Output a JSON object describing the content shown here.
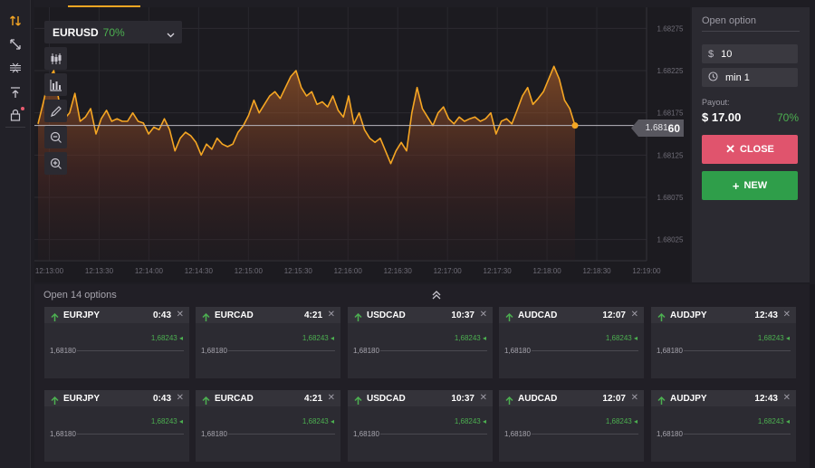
{
  "chart": {
    "pair": "EURUSD",
    "payout_pct": "70%",
    "current_price_prefix": "1.681",
    "current_price_suffix": "60",
    "y_ticks": [
      "1.68275",
      "1.68225",
      "1.68175",
      "1.68125",
      "1.68075",
      "1.68025"
    ],
    "x_ticks": [
      "12:13:00",
      "12:13:30",
      "12:14:00",
      "12:14:30",
      "12:15:00",
      "12:15:30",
      "12:16:00",
      "12:16:30",
      "12:17:00",
      "12:17:30",
      "12:18:00",
      "12:18:30",
      "12:19:00"
    ],
    "line_color": "#f5a623"
  },
  "chart_data": {
    "type": "area",
    "ylim": [
      1.68,
      1.683
    ],
    "x_range": [
      "12:12:51",
      "12:19:00"
    ],
    "series": [
      {
        "values": [
          1.68162,
          1.68187,
          1.68215,
          1.68225,
          1.68188,
          1.68168,
          1.68175,
          1.68198,
          1.68165,
          1.6817,
          1.6818,
          1.6815,
          1.68168,
          1.68178,
          1.68165,
          1.68168,
          1.68165,
          1.68165,
          1.68175,
          1.68165,
          1.68163,
          1.6815,
          1.68158,
          1.68155,
          1.68168,
          1.68155,
          1.6813,
          1.68145,
          1.68152,
          1.68148,
          1.6814,
          1.68125,
          1.68138,
          1.68132,
          1.68145,
          1.68138,
          1.68135,
          1.68138,
          1.68152,
          1.6816,
          1.68172,
          1.6819,
          1.68175,
          1.68185,
          1.68195,
          1.682,
          1.68192,
          1.68205,
          1.68218,
          1.68225,
          1.68205,
          1.68195,
          1.682,
          1.68185,
          1.68188,
          1.68182,
          1.68195,
          1.68178,
          1.6817,
          1.68195,
          1.68162,
          1.68175,
          1.68155,
          1.68145,
          1.6814,
          1.68145,
          1.6813,
          1.68115,
          1.6813,
          1.6814,
          1.6813,
          1.68175,
          1.68205,
          1.6818,
          1.6817,
          1.6816,
          1.68175,
          1.68182,
          1.68168,
          1.68162,
          1.6817,
          1.68165,
          1.68168,
          1.6817,
          1.68165,
          1.68168,
          1.68175,
          1.6815,
          1.68165,
          1.68168,
          1.68162,
          1.68178,
          1.68195,
          1.68205,
          1.68185,
          1.68192,
          1.682,
          1.68215,
          1.6823,
          1.68215,
          1.6819,
          1.6818,
          1.6816
        ]
      }
    ]
  },
  "toolbar": {
    "icons": [
      "sort-arrows-icon",
      "diagonal-arrows-icon",
      "compress-icon",
      "upload-icon",
      "lock-icon"
    ]
  },
  "chart_tools": [
    "candles-icon",
    "bar-chart-icon",
    "pencil-icon",
    "zoom-out-icon",
    "zoom-in-icon"
  ],
  "option_panel": {
    "title": "Open option",
    "amount_symbol": "$",
    "amount": "10",
    "duration": "min 1",
    "payout_label": "Payout:",
    "payout_value": "$ 17.00",
    "payout_pct": "70%",
    "close_label": "CLOSE",
    "new_label": "NEW",
    "close_color": "#e0546d",
    "new_color": "#2f9e4a"
  },
  "open_options": {
    "label": "Open 14 options",
    "cards": [
      {
        "pair": "EURJPY",
        "time": "0:43",
        "current": "1,68243",
        "open": "1,68180"
      },
      {
        "pair": "EURCAD",
        "time": "4:21",
        "current": "1,68243",
        "open": "1,68180"
      },
      {
        "pair": "USDCAD",
        "time": "10:37",
        "current": "1,68243",
        "open": "1,68180"
      },
      {
        "pair": "AUDCAD",
        "time": "12:07",
        "current": "1,68243",
        "open": "1,68180"
      },
      {
        "pair": "AUDJPY",
        "time": "12:43",
        "current": "1,68243",
        "open": "1,68180"
      },
      {
        "pair": "EURJPY",
        "time": "0:43",
        "current": "1,68243",
        "open": "1,68180"
      },
      {
        "pair": "EURCAD",
        "time": "4:21",
        "current": "1,68243",
        "open": "1,68180"
      },
      {
        "pair": "USDCAD",
        "time": "10:37",
        "current": "1,68243",
        "open": "1,68180"
      },
      {
        "pair": "AUDCAD",
        "time": "12:07",
        "current": "1,68243",
        "open": "1,68180"
      },
      {
        "pair": "AUDJPY",
        "time": "12:43",
        "current": "1,68243",
        "open": "1,68180"
      }
    ]
  }
}
